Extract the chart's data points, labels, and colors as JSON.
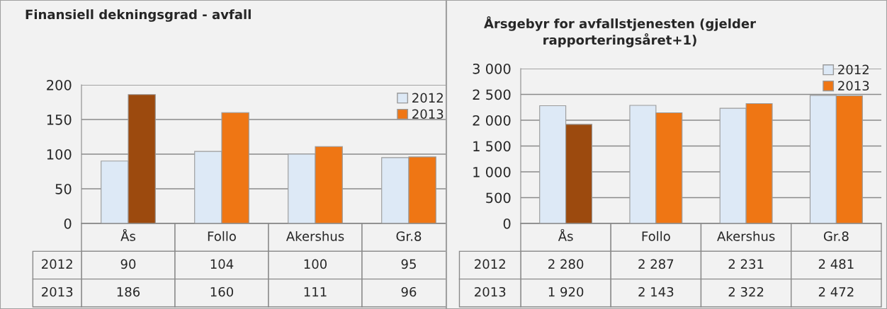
{
  "chart_data": [
    {
      "type": "bar",
      "title": "Finansiell dekningsgrad - avfall",
      "categories": [
        "Ås",
        "Follo",
        "Akershus",
        "Gr.8"
      ],
      "series": [
        {
          "name": "2012",
          "color": "#dde9f6",
          "values": [
            90,
            104,
            100,
            95
          ]
        },
        {
          "name": "2013",
          "color": "#ef7614",
          "colors": [
            "#9c4a0e",
            "#ef7614",
            "#ef7614",
            "#ef7614"
          ],
          "values": [
            186,
            160,
            111,
            96
          ]
        }
      ],
      "ylim": [
        0,
        200
      ],
      "yticks": [
        0,
        50,
        100,
        150,
        200
      ],
      "grid": "y",
      "legend": "top right",
      "data_labels": true
    },
    {
      "type": "bar",
      "title": "Årsgebyr for avfallstjenesten (gjelder rapporteringsåret+1)",
      "categories": [
        "Ås",
        "Follo",
        "Akershus",
        "Gr.8"
      ],
      "series": [
        {
          "name": "2012",
          "color": "#dde9f6",
          "values": [
            2280,
            2287,
            2231,
            2481
          ],
          "value_labels": [
            "2 280",
            "2 287",
            "2 231",
            "2 481"
          ]
        },
        {
          "name": "2013",
          "color": "#ef7614",
          "colors": [
            "#9c4a0e",
            "#ef7614",
            "#ef7614",
            "#ef7614"
          ],
          "values": [
            1920,
            2143,
            2322,
            2472
          ],
          "value_labels": [
            "1 920",
            "2 143",
            "2 322",
            "2 472"
          ]
        }
      ],
      "ylim": [
        0,
        3000
      ],
      "yticks": [
        0,
        {
          "value": 500,
          "label": "500"
        },
        {
          "value": 1000,
          "label": "1 000"
        },
        {
          "value": 1500,
          "label": "1 500"
        },
        {
          "value": 2000,
          "label": "2 000"
        },
        {
          "value": 2500,
          "label": "2 500"
        },
        {
          "value": 3000,
          "label": "3 000"
        }
      ],
      "grid": "y",
      "legend": "top right"
    }
  ]
}
